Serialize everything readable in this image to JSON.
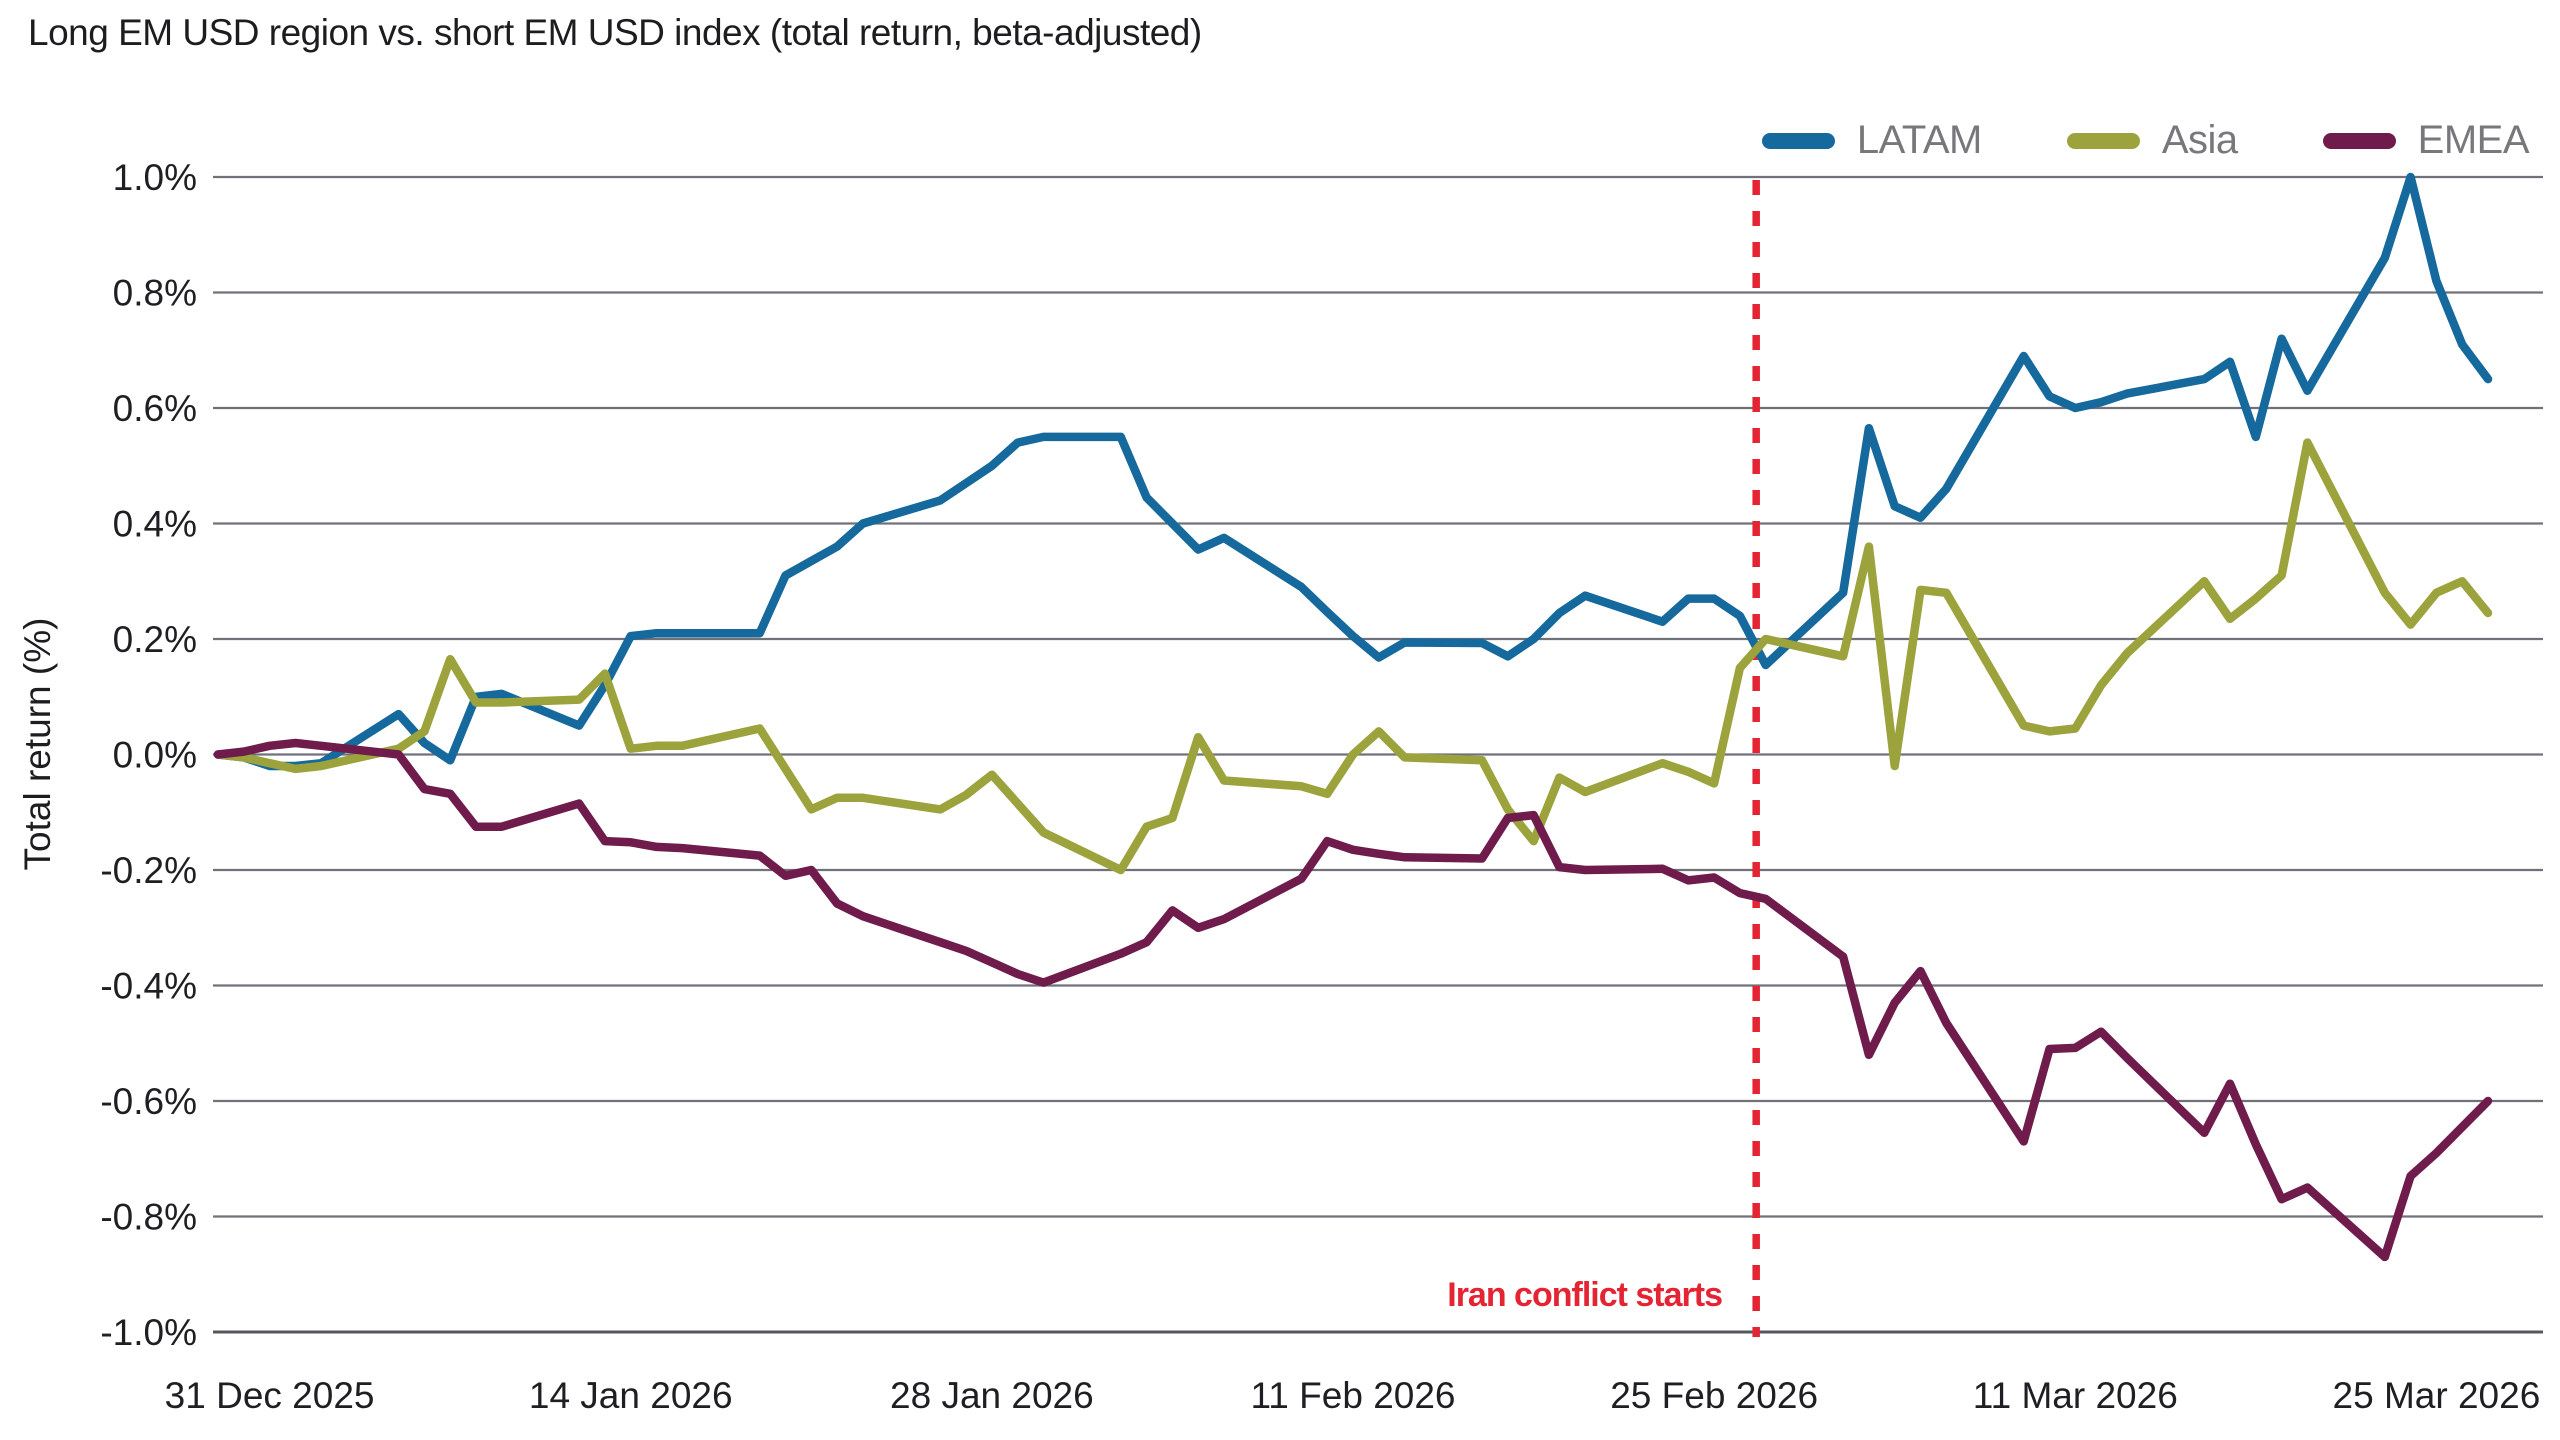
{
  "title": "Long EM USD region vs. short EM USD index (total return, beta-adjusted)",
  "legend": {
    "position": "top-right",
    "items": [
      {
        "label": "LATAM",
        "color": "#16699c"
      },
      {
        "label": "Asia",
        "color": "#9ca33c"
      },
      {
        "label": "EMEA",
        "color": "#6f1c4c"
      }
    ]
  },
  "y_axis": {
    "title": "Total return (%)",
    "tick_labels": [
      "1.0%",
      "0.8%",
      "0.6%",
      "0.4%",
      "0.2%",
      "0.0%",
      "-0.2%",
      "-0.4%",
      "-0.6%",
      "-0.8%",
      "-1.0%"
    ],
    "tick_values": [
      1.0,
      0.8,
      0.6,
      0.4,
      0.2,
      0.0,
      -0.2,
      -0.4,
      -0.6,
      -0.8,
      -1.0
    ]
  },
  "x_axis": {
    "ticks": [
      {
        "label": "31 Dec 2025",
        "date": "2025-12-31"
      },
      {
        "label": "14 Jan 2026",
        "date": "2026-01-14"
      },
      {
        "label": "28 Jan 2026",
        "date": "2026-01-28"
      },
      {
        "label": "11 Feb 2026",
        "date": "2026-02-11"
      },
      {
        "label": "25 Feb 2026",
        "date": "2026-02-25"
      },
      {
        "label": "11 Mar 2026",
        "date": "2026-03-11"
      },
      {
        "label": "25 Mar 2026",
        "date": "2026-03-25"
      }
    ]
  },
  "event": {
    "label": "Iran conflict starts",
    "date": "2026-02-26",
    "days_after_start": 59.63,
    "color": "#e52433"
  },
  "chart_data": {
    "type": "line",
    "unit": "percent total return",
    "title": "Long EM USD region vs. short EM USD index (total return, beta-adjusted)",
    "xlabel": "",
    "ylabel": "Total return (%)",
    "ylim": [
      -1.0,
      1.0
    ],
    "grid": "horizontal",
    "legend_position": "top-right",
    "start_date": "2025-12-29",
    "end_date": "2026-03-27",
    "x": [
      "2025-12-29",
      "2025-12-30",
      "2025-12-31",
      "2026-01-01",
      "2026-01-02",
      "2026-01-05",
      "2026-01-06",
      "2026-01-07",
      "2026-01-08",
      "2026-01-09",
      "2026-01-12",
      "2026-01-13",
      "2026-01-14",
      "2026-01-15",
      "2026-01-16",
      "2026-01-19",
      "2026-01-20",
      "2026-01-21",
      "2026-01-22",
      "2026-01-23",
      "2026-01-26",
      "2026-01-27",
      "2026-01-28",
      "2026-01-29",
      "2026-01-30",
      "2026-02-02",
      "2026-02-03",
      "2026-02-04",
      "2026-02-05",
      "2026-02-06",
      "2026-02-09",
      "2026-02-10",
      "2026-02-11",
      "2026-02-12",
      "2026-02-13",
      "2026-02-16",
      "2026-02-17",
      "2026-02-18",
      "2026-02-19",
      "2026-02-20",
      "2026-02-23",
      "2026-02-24",
      "2026-02-25",
      "2026-02-26",
      "2026-02-27",
      "2026-03-02",
      "2026-03-03",
      "2026-03-04",
      "2026-03-05",
      "2026-03-06",
      "2026-03-09",
      "2026-03-10",
      "2026-03-11",
      "2026-03-12",
      "2026-03-13",
      "2026-03-16",
      "2026-03-17",
      "2026-03-18",
      "2026-03-19",
      "2026-03-20",
      "2026-03-23",
      "2026-03-24",
      "2026-03-25",
      "2026-03-26",
      "2026-03-27"
    ],
    "series": [
      {
        "name": "LATAM",
        "color": "#16699c",
        "values": [
          0.0,
          -0.005,
          -0.02,
          -0.02,
          -0.015,
          0.07,
          0.02,
          -0.01,
          0.1,
          0.105,
          0.05,
          0.12,
          0.205,
          0.21,
          0.21,
          0.21,
          0.31,
          0.335,
          0.36,
          0.4,
          0.44,
          0.47,
          0.5,
          0.54,
          0.55,
          0.55,
          0.445,
          0.4,
          0.355,
          0.375,
          0.29,
          0.247,
          0.205,
          0.168,
          0.194,
          0.193,
          0.17,
          0.2,
          0.245,
          0.275,
          0.23,
          0.27,
          0.27,
          0.24,
          0.155,
          0.28,
          0.565,
          0.43,
          0.41,
          0.46,
          0.69,
          0.62,
          0.6,
          0.61,
          0.625,
          0.65,
          0.68,
          0.55,
          0.72,
          0.63,
          0.86,
          1.0,
          0.82,
          0.71,
          0.65
        ]
      },
      {
        "name": "Asia",
        "color": "#9ca33c",
        "values": [
          0.0,
          -0.005,
          -0.015,
          -0.025,
          -0.02,
          0.01,
          0.04,
          0.165,
          0.09,
          0.09,
          0.095,
          0.14,
          0.01,
          0.015,
          0.015,
          0.045,
          -0.025,
          -0.095,
          -0.075,
          -0.075,
          -0.095,
          -0.07,
          -0.035,
          -0.085,
          -0.135,
          -0.2,
          -0.125,
          -0.11,
          0.03,
          -0.045,
          -0.055,
          -0.068,
          0.0,
          0.04,
          -0.005,
          -0.01,
          -0.095,
          -0.15,
          -0.04,
          -0.065,
          -0.015,
          -0.03,
          -0.05,
          0.15,
          0.2,
          0.17,
          0.36,
          -0.02,
          0.285,
          0.28,
          0.05,
          0.04,
          0.045,
          0.12,
          0.175,
          0.3,
          0.235,
          0.27,
          0.31,
          0.54,
          0.28,
          0.225,
          0.28,
          0.3,
          0.245
        ]
      },
      {
        "name": "EMEA",
        "color": "#6f1c4c",
        "values": [
          0.0,
          0.005,
          0.015,
          0.02,
          0.015,
          0.0,
          -0.06,
          -0.068,
          -0.125,
          -0.125,
          -0.085,
          -0.15,
          -0.152,
          -0.16,
          -0.162,
          -0.175,
          -0.21,
          -0.2,
          -0.258,
          -0.28,
          -0.325,
          -0.34,
          -0.36,
          -0.38,
          -0.395,
          -0.345,
          -0.325,
          -0.27,
          -0.3,
          -0.285,
          -0.215,
          -0.15,
          -0.165,
          -0.172,
          -0.178,
          -0.18,
          -0.11,
          -0.105,
          -0.195,
          -0.2,
          -0.198,
          -0.218,
          -0.213,
          -0.24,
          -0.25,
          -0.35,
          -0.52,
          -0.43,
          -0.375,
          -0.465,
          -0.67,
          -0.51,
          -0.508,
          -0.48,
          -0.525,
          -0.655,
          -0.57,
          -0.675,
          -0.77,
          -0.75,
          -0.87,
          -0.73,
          -0.69,
          -0.645,
          -0.6
        ]
      }
    ]
  },
  "style": {
    "grid_color": "#71717a",
    "axis_color": "#57575e",
    "text_color": "#1f1f23",
    "legend_text_color": "#77777c",
    "background": "#ffffff"
  }
}
